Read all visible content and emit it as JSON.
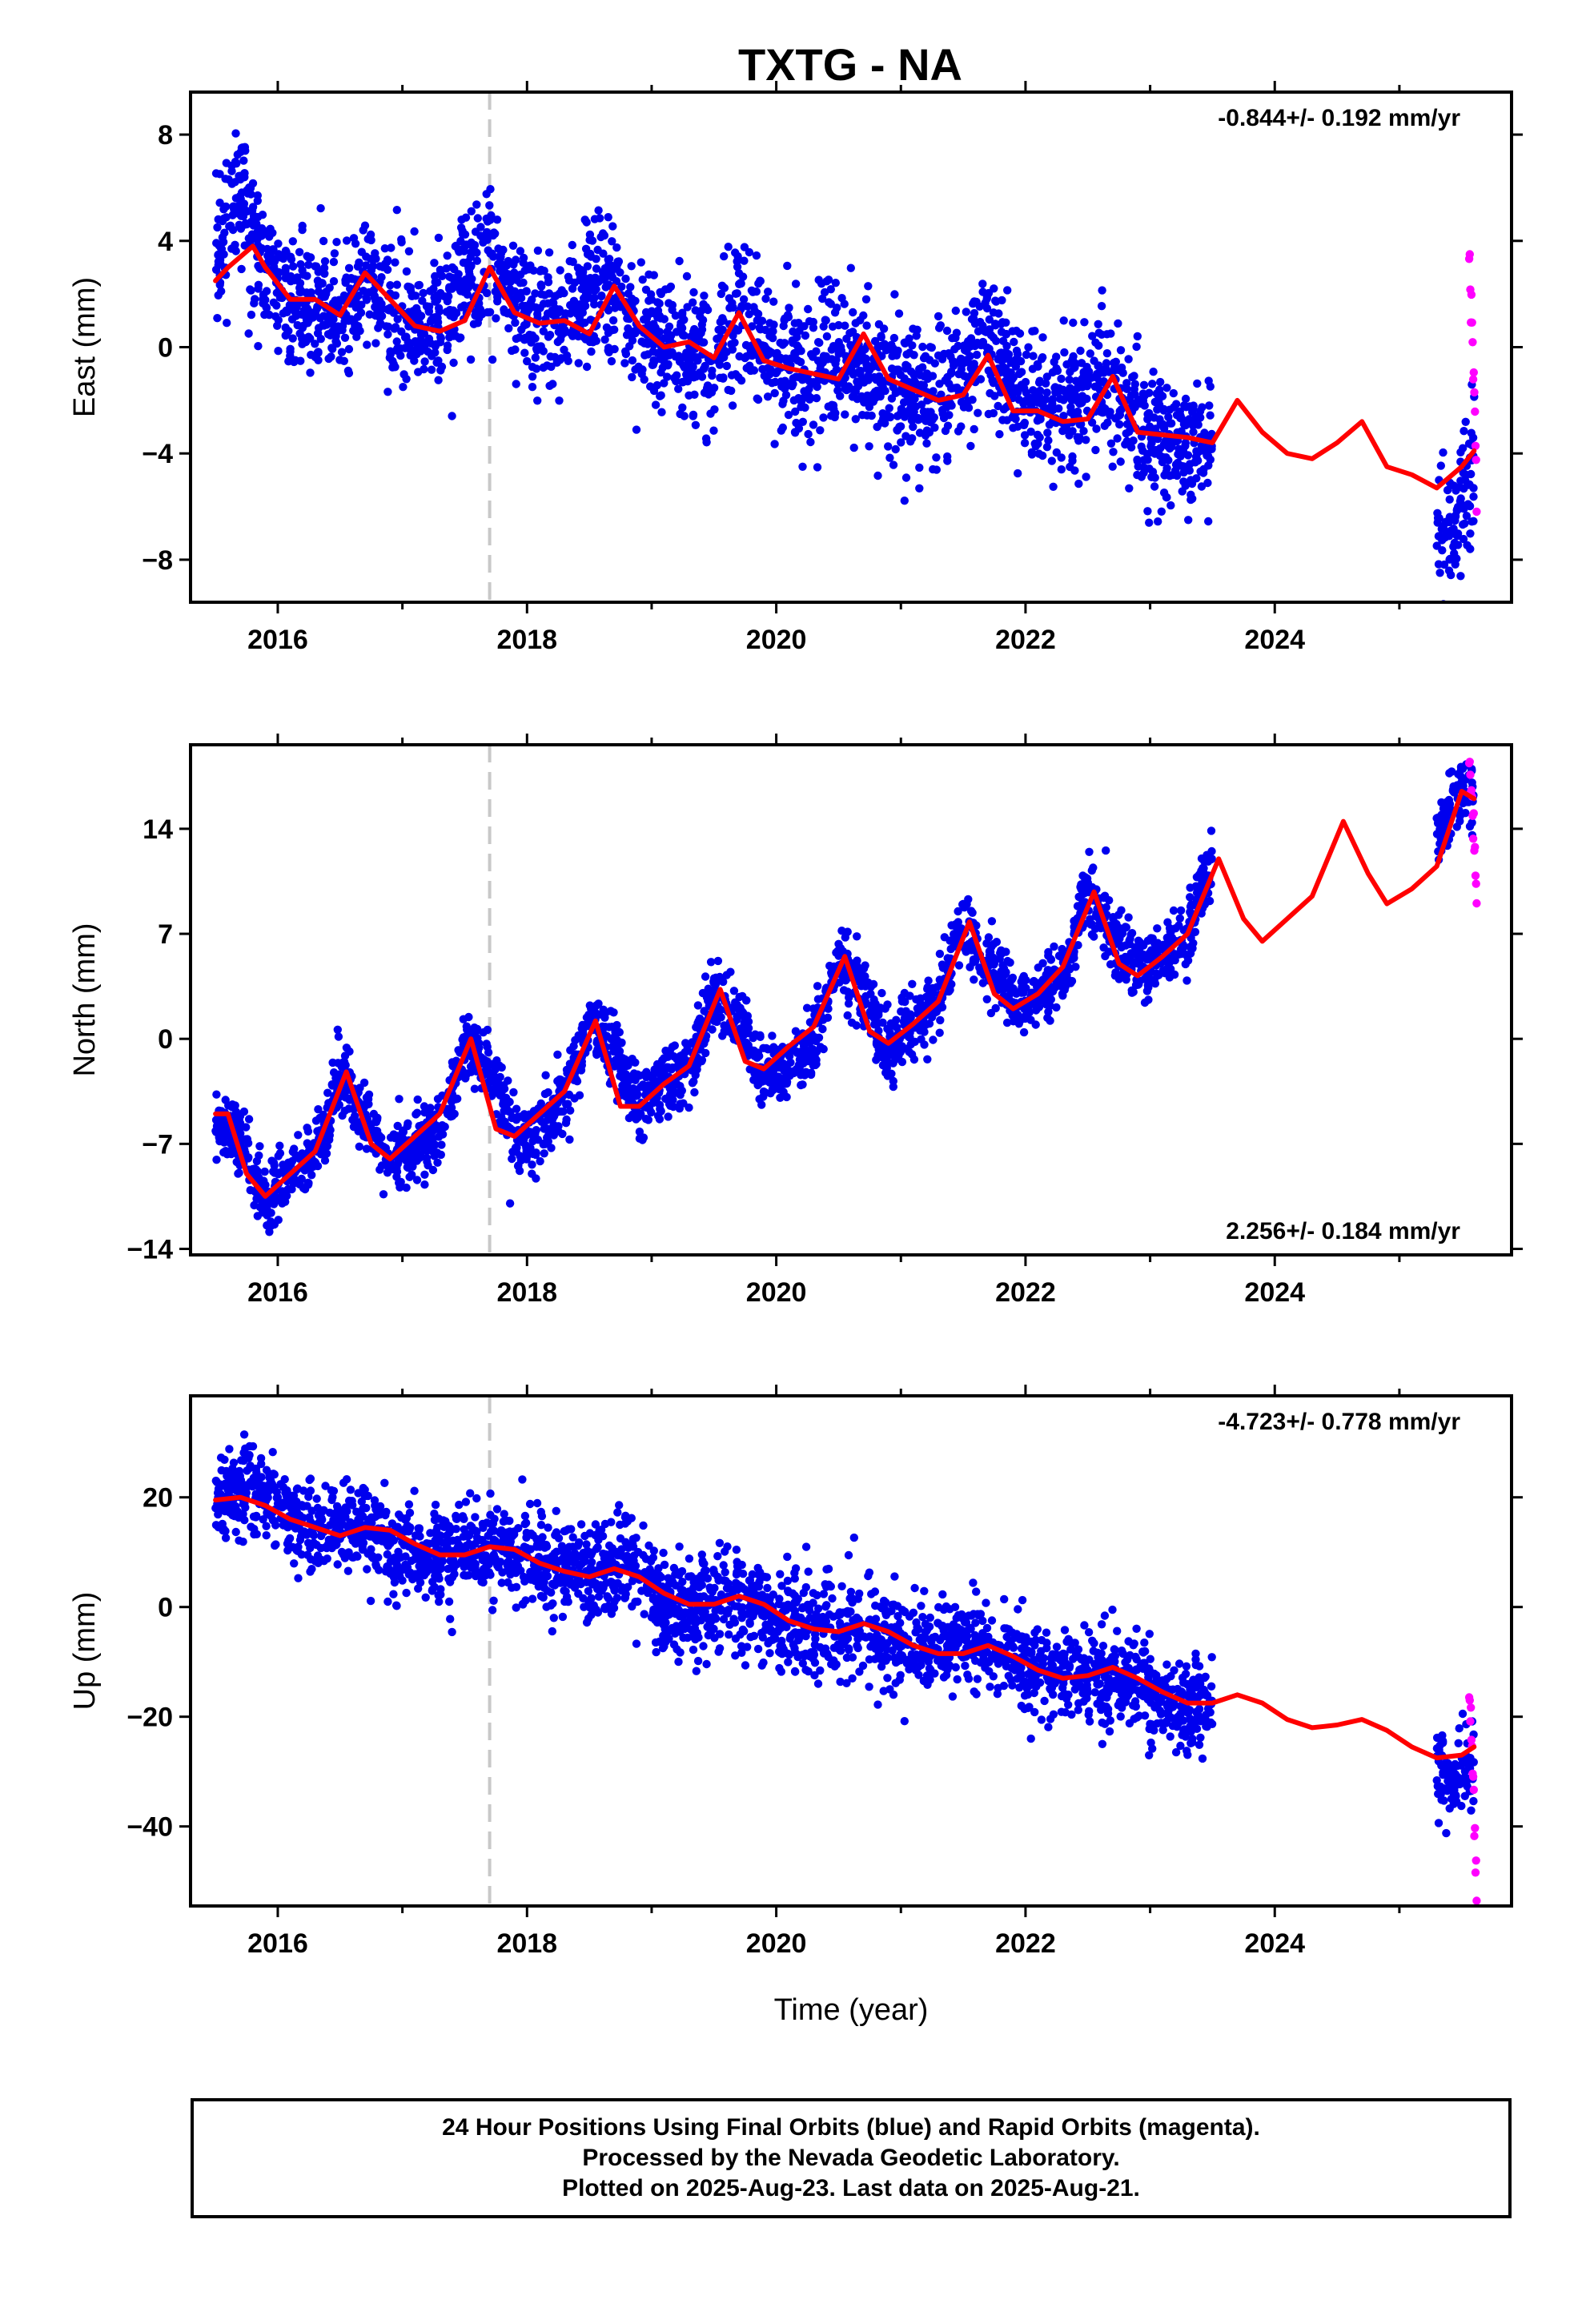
{
  "chart_title": "TXTG - NA",
  "colors": {
    "final_orbits": "#0000ee",
    "rapid_orbits": "#ff00ff",
    "model_fit": "#ff0000",
    "equipment_change": "#c8c8c8"
  },
  "footer": {
    "line1": "24 Hour Positions Using Final Orbits (blue) and Rapid Orbits (magenta).",
    "line2": "Processed by the Nevada Geodetic Laboratory.",
    "line3": "Plotted on 2025-Aug-23. Last data on 2025-Aug-21."
  },
  "chart_data": [
    {
      "type": "scatter",
      "title": "TXTG - NA",
      "ylabel": "East (mm)",
      "xlabel": "",
      "rate_label": "-0.844+/- 0.192 mm/yr",
      "rate_position": "top-right",
      "xlim": [
        2015.3,
        2025.9
      ],
      "ylim": [
        -9.6,
        9.6
      ],
      "x_ticks": [
        2016,
        2018,
        2020,
        2022,
        2024
      ],
      "x_tick_labels": [
        "2016",
        "2018",
        "2020",
        "2022",
        "2024"
      ],
      "y_ticks": [
        8,
        4,
        0,
        -4,
        -8
      ],
      "y_tick_labels": [
        "8",
        "4",
        "0",
        "−4",
        "−8"
      ],
      "equipment_change_x": 2017.7,
      "final_data_range": [
        [
          2015.5,
          2023.55
        ],
        [
          2025.3,
          2025.6
        ]
      ],
      "rapid_data_range": [
        2025.55,
        2025.62
      ],
      "series": [
        {
          "kind": "final",
          "x": [
            2015.5,
            2015.6,
            2015.7,
            2015.8,
            2016.0,
            2016.3,
            2016.5,
            2016.7,
            2017.0,
            2017.3,
            2017.5,
            2017.7,
            2018.0,
            2018.3,
            2018.6,
            2018.9,
            2019.2,
            2019.5,
            2019.7,
            2020.0,
            2020.3,
            2020.6,
            2020.9,
            2021.2,
            2021.5,
            2021.7,
            2022.0,
            2022.3,
            2022.6,
            2022.9,
            2023.2,
            2023.5
          ],
          "y": [
            3.0,
            5.5,
            6.0,
            4.0,
            2.0,
            1.5,
            1.0,
            2.5,
            1.0,
            0.8,
            2.5,
            3.0,
            1.0,
            1.0,
            2.5,
            0.5,
            0.0,
            -0.5,
            1.5,
            -0.8,
            -1.0,
            0.0,
            -1.5,
            -1.8,
            -1.2,
            0.5,
            -2.0,
            -2.5,
            -1.0,
            -3.2,
            -3.5,
            -4.0
          ]
        },
        {
          "kind": "final",
          "x": [
            2025.3,
            2025.4,
            2025.5,
            2025.6
          ],
          "y": [
            -6.5,
            -7.5,
            -5.5,
            -4.5
          ]
        },
        {
          "kind": "rapid",
          "x": [
            2025.56,
            2025.58,
            2025.6,
            2025.62
          ],
          "y": [
            3.5,
            1.5,
            -2.0,
            -5.0
          ]
        },
        {
          "kind": "model",
          "x": [
            2015.5,
            2015.6,
            2015.8,
            2015.9,
            2016.1,
            2016.3,
            2016.5,
            2016.7,
            2016.9,
            2017.1,
            2017.3,
            2017.5,
            2017.7,
            2017.9,
            2018.1,
            2018.3,
            2018.5,
            2018.7,
            2018.9,
            2019.1,
            2019.3,
            2019.5,
            2019.7,
            2019.9,
            2020.1,
            2020.3,
            2020.5,
            2020.7,
            2020.9,
            2021.1,
            2021.3,
            2021.5,
            2021.7,
            2021.9,
            2022.1,
            2022.3,
            2022.5,
            2022.7,
            2022.9,
            2023.1,
            2023.3,
            2023.5,
            2023.7,
            2023.9,
            2024.1,
            2024.3,
            2024.5,
            2024.7,
            2024.9,
            2025.1,
            2025.3,
            2025.5,
            2025.6
          ],
          "y": [
            2.5,
            3.0,
            3.8,
            3.0,
            1.8,
            1.8,
            1.2,
            2.8,
            1.8,
            0.8,
            0.6,
            1.0,
            3.0,
            1.3,
            0.9,
            1.0,
            0.5,
            2.3,
            0.8,
            0.0,
            0.2,
            -0.4,
            1.3,
            -0.5,
            -0.8,
            -1.0,
            -1.2,
            0.5,
            -1.2,
            -1.6,
            -2.0,
            -1.8,
            -0.3,
            -2.4,
            -2.4,
            -2.8,
            -2.7,
            -1.1,
            -3.2,
            -3.3,
            -3.4,
            -3.6,
            -2.0,
            -3.2,
            -4.0,
            -4.2,
            -3.6,
            -2.8,
            -4.5,
            -4.8,
            -5.3,
            -4.5,
            -3.9
          ]
        }
      ]
    },
    {
      "type": "scatter",
      "ylabel": "North (mm)",
      "xlabel": "",
      "rate_label": "2.256+/- 0.184 mm/yr",
      "rate_position": "bottom-right",
      "xlim": [
        2015.3,
        2025.9
      ],
      "ylim": [
        -14.4,
        19.6
      ],
      "x_ticks": [
        2016,
        2018,
        2020,
        2022,
        2024
      ],
      "x_tick_labels": [
        "2016",
        "2018",
        "2020",
        "2022",
        "2024"
      ],
      "y_ticks": [
        14,
        7,
        0,
        -7,
        -14
      ],
      "y_tick_labels": [
        "14",
        "7",
        "0",
        "−7",
        "−14"
      ],
      "equipment_change_x": 2017.7,
      "final_data_range": [
        [
          2015.5,
          2023.55
        ],
        [
          2025.3,
          2025.6
        ]
      ],
      "rapid_data_range": [
        2025.55,
        2025.62
      ],
      "series": [
        {
          "kind": "final",
          "x": [
            2015.5,
            2015.7,
            2015.9,
            2016.1,
            2016.3,
            2016.5,
            2016.7,
            2016.9,
            2017.1,
            2017.3,
            2017.5,
            2017.7,
            2017.9,
            2018.1,
            2018.3,
            2018.5,
            2018.7,
            2018.9,
            2019.1,
            2019.3,
            2019.5,
            2019.7,
            2019.9,
            2020.1,
            2020.3,
            2020.5,
            2020.7,
            2020.9,
            2021.1,
            2021.3,
            2021.5,
            2021.7,
            2021.9,
            2022.1,
            2022.3,
            2022.5,
            2022.7,
            2022.9,
            2023.1,
            2023.3,
            2023.5
          ],
          "y": [
            -5.5,
            -7.0,
            -11.0,
            -9.0,
            -8.0,
            -2.5,
            -5.0,
            -8.5,
            -7.0,
            -6.0,
            -0.5,
            -2.0,
            -6.5,
            -6.0,
            -4.0,
            1.0,
            -1.0,
            -4.5,
            -3.0,
            -2.0,
            3.0,
            1.0,
            -2.5,
            -2.0,
            -0.5,
            5.5,
            3.0,
            -0.5,
            1.0,
            2.5,
            8.0,
            5.0,
            2.5,
            3.0,
            4.5,
            10.0,
            7.0,
            4.5,
            5.5,
            7.0,
            12.0
          ]
        },
        {
          "kind": "final",
          "x": [
            2025.3,
            2025.4,
            2025.5,
            2025.6
          ],
          "y": [
            13.0,
            15.5,
            17.0,
            16.0
          ]
        },
        {
          "kind": "rapid",
          "x": [
            2025.56,
            2025.58,
            2025.6,
            2025.62
          ],
          "y": [
            18.5,
            16.0,
            13.0,
            9.0
          ]
        },
        {
          "kind": "model",
          "x": [
            2015.5,
            2015.6,
            2015.75,
            2015.9,
            2016.1,
            2016.3,
            2016.55,
            2016.75,
            2016.9,
            2017.1,
            2017.3,
            2017.55,
            2017.75,
            2017.9,
            2018.1,
            2018.3,
            2018.55,
            2018.75,
            2018.9,
            2019.1,
            2019.3,
            2019.55,
            2019.75,
            2019.9,
            2020.1,
            2020.3,
            2020.55,
            2020.75,
            2020.9,
            2021.1,
            2021.3,
            2021.55,
            2021.75,
            2021.9,
            2022.1,
            2022.3,
            2022.55,
            2022.75,
            2022.9,
            2023.1,
            2023.3,
            2023.55,
            2023.75,
            2023.9,
            2024.1,
            2024.3,
            2024.55,
            2024.75,
            2024.9,
            2025.1,
            2025.3,
            2025.5,
            2025.6
          ],
          "y": [
            -5.0,
            -5.0,
            -9.0,
            -10.5,
            -9.0,
            -7.5,
            -2.2,
            -7.0,
            -8.0,
            -6.5,
            -5.0,
            0.0,
            -6.0,
            -6.5,
            -5.0,
            -3.5,
            1.2,
            -4.5,
            -4.5,
            -3.0,
            -1.8,
            3.3,
            -1.5,
            -2.0,
            -0.5,
            0.8,
            5.5,
            0.5,
            -0.3,
            1.0,
            2.5,
            7.8,
            3.0,
            2.0,
            3.0,
            4.8,
            9.8,
            5.0,
            4.2,
            5.5,
            7.0,
            12.0,
            8.0,
            6.5,
            8.0,
            9.5,
            14.5,
            11.0,
            9.0,
            10.0,
            11.5,
            16.5,
            16.0
          ]
        }
      ]
    },
    {
      "type": "scatter",
      "ylabel": "Up (mm)",
      "xlabel": "Time (year)",
      "rate_label": "-4.723+/- 0.778 mm/yr",
      "rate_position": "top-right",
      "xlim": [
        2015.3,
        2025.9
      ],
      "ylim": [
        -54.5,
        38.5
      ],
      "x_ticks": [
        2016,
        2018,
        2020,
        2022,
        2024
      ],
      "x_tick_labels": [
        "2016",
        "2018",
        "2020",
        "2022",
        "2024"
      ],
      "y_ticks": [
        20,
        0,
        -20,
        -40
      ],
      "y_tick_labels": [
        "20",
        "0",
        "−20",
        "−40"
      ],
      "equipment_change_x": 2017.7,
      "final_data_range": [
        [
          2015.5,
          2023.55
        ],
        [
          2025.3,
          2025.6
        ]
      ],
      "rapid_data_range": [
        2025.55,
        2025.62
      ],
      "series": [
        {
          "kind": "final",
          "x": [
            2015.5,
            2015.8,
            2016.1,
            2016.4,
            2016.7,
            2017.0,
            2017.3,
            2017.6,
            2017.9,
            2018.2,
            2018.5,
            2018.8,
            2019.1,
            2019.4,
            2019.7,
            2020.0,
            2020.3,
            2020.6,
            2020.9,
            2021.2,
            2021.5,
            2021.8,
            2022.1,
            2022.4,
            2022.7,
            2023.0,
            2023.3,
            2023.5
          ],
          "y": [
            20.0,
            22.0,
            16.0,
            14.0,
            15.0,
            10.0,
            9.0,
            11.0,
            10.0,
            7.0,
            6.0,
            8.0,
            0.0,
            0.0,
            2.0,
            -4.0,
            -4.0,
            -3.0,
            -6.0,
            -8.0,
            -6.0,
            -8.0,
            -12.0,
            -12.0,
            -12.0,
            -16.0,
            -18.0,
            -18.0
          ]
        },
        {
          "kind": "final",
          "x": [
            2025.3,
            2025.4,
            2025.5,
            2025.6
          ],
          "y": [
            -28.0,
            -32.0,
            -30.0,
            -28.0
          ]
        },
        {
          "kind": "rapid",
          "x": [
            2025.56,
            2025.58,
            2025.6,
            2025.62
          ],
          "y": [
            -15.0,
            -25.0,
            -38.0,
            -52.0
          ]
        },
        {
          "kind": "model",
          "x": [
            2015.5,
            2015.7,
            2015.9,
            2016.1,
            2016.3,
            2016.5,
            2016.7,
            2016.9,
            2017.1,
            2017.3,
            2017.5,
            2017.7,
            2017.9,
            2018.1,
            2018.3,
            2018.5,
            2018.7,
            2018.9,
            2019.1,
            2019.3,
            2019.5,
            2019.7,
            2019.9,
            2020.1,
            2020.3,
            2020.5,
            2020.7,
            2020.9,
            2021.1,
            2021.3,
            2021.5,
            2021.7,
            2021.9,
            2022.1,
            2022.3,
            2022.5,
            2022.7,
            2022.9,
            2023.1,
            2023.3,
            2023.5,
            2023.7,
            2023.9,
            2024.1,
            2024.3,
            2024.5,
            2024.7,
            2024.9,
            2025.1,
            2025.3,
            2025.5,
            2025.6
          ],
          "y": [
            19.5,
            20.0,
            18.5,
            16.0,
            14.5,
            13.0,
            14.5,
            14.0,
            11.5,
            9.5,
            9.5,
            11.0,
            10.5,
            8.0,
            6.5,
            5.5,
            7.0,
            5.5,
            2.5,
            0.5,
            0.5,
            2.0,
            0.5,
            -2.5,
            -4.0,
            -4.5,
            -3.0,
            -4.5,
            -7.0,
            -8.5,
            -8.5,
            -7.0,
            -9.0,
            -11.5,
            -13.0,
            -12.5,
            -11.0,
            -13.0,
            -15.5,
            -17.5,
            -17.5,
            -16.0,
            -17.5,
            -20.5,
            -22.0,
            -21.5,
            -20.5,
            -22.5,
            -25.5,
            -27.5,
            -27.0,
            -25.5
          ]
        }
      ]
    }
  ]
}
